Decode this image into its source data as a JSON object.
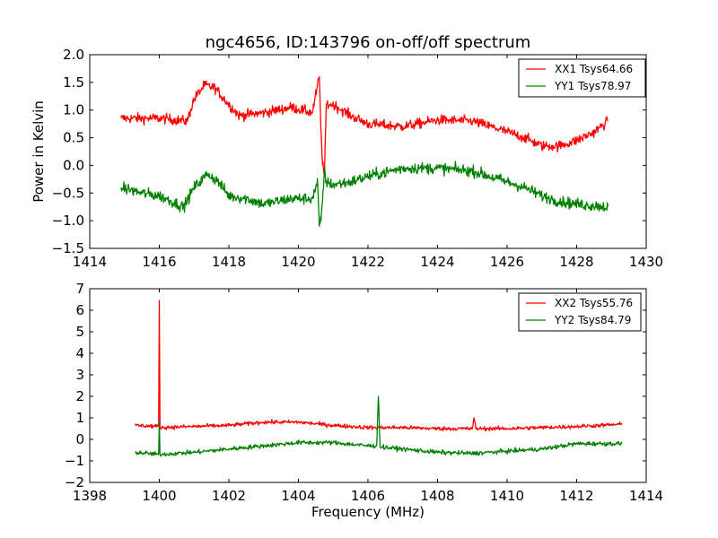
{
  "chart_data": [
    {
      "type": "line",
      "title": "ngc4656, ID:143796 on-off/off spectrum",
      "xlabel": "",
      "ylabel": "Power in Kelvin",
      "xlim": [
        1414,
        1430
      ],
      "ylim": [
        -1.5,
        2.0
      ],
      "xticks": [
        "1414",
        "1416",
        "1418",
        "1420",
        "1422",
        "1424",
        "1426",
        "1428",
        "1430"
      ],
      "yticks": [
        "−1.5",
        "−1.0",
        "−0.5",
        "0.0",
        "0.5",
        "1.0",
        "1.5",
        "2.0"
      ],
      "xtick_values": [
        1414,
        1416,
        1418,
        1420,
        1422,
        1424,
        1426,
        1428,
        1430
      ],
      "ytick_values": [
        -1.5,
        -1.0,
        -0.5,
        0.0,
        0.5,
        1.0,
        1.5,
        2.0
      ],
      "legend_position": "top-right",
      "grid": false,
      "series": [
        {
          "name": "XX1 Tsys64.66",
          "color": "#ff0000",
          "noise": 0.09,
          "x": [
            1414.9,
            1416.0,
            1416.8,
            1417.0,
            1417.3,
            1417.6,
            1418.0,
            1418.3,
            1419.0,
            1419.8,
            1420.4,
            1420.6,
            1420.65,
            1420.7,
            1420.75,
            1420.8,
            1421.0,
            1421.5,
            1422.0,
            1423.0,
            1424.0,
            1425.0,
            1425.8,
            1426.5,
            1427.0,
            1427.5,
            1428.0,
            1428.5,
            1428.9
          ],
          "y": [
            0.85,
            0.85,
            0.8,
            1.2,
            1.45,
            1.4,
            1.1,
            0.9,
            0.95,
            1.05,
            0.95,
            1.6,
            0.6,
            0.0,
            -0.2,
            1.1,
            1.1,
            0.9,
            0.75,
            0.7,
            0.82,
            0.8,
            0.65,
            0.5,
            0.35,
            0.35,
            0.45,
            0.6,
            0.8
          ]
        },
        {
          "name": "YY1 Tsys78.97",
          "color": "#008000",
          "noise": 0.1,
          "x": [
            1414.9,
            1415.5,
            1416.0,
            1416.7,
            1417.0,
            1417.4,
            1417.7,
            1418.0,
            1418.5,
            1419.0,
            1419.8,
            1420.4,
            1420.55,
            1420.6,
            1420.65,
            1420.75,
            1420.8,
            1421.0,
            1421.5,
            1422.0,
            1423.0,
            1424.0,
            1425.0,
            1426.0,
            1426.5,
            1427.0,
            1427.5,
            1428.0,
            1428.9
          ],
          "y": [
            -0.4,
            -0.5,
            -0.55,
            -0.75,
            -0.4,
            -0.15,
            -0.3,
            -0.55,
            -0.6,
            -0.7,
            -0.6,
            -0.6,
            -0.3,
            -1.1,
            -1.0,
            -0.1,
            -0.3,
            -0.35,
            -0.3,
            -0.2,
            -0.05,
            -0.05,
            -0.1,
            -0.3,
            -0.4,
            -0.55,
            -0.65,
            -0.7,
            -0.75
          ]
        }
      ]
    },
    {
      "type": "line",
      "title": "",
      "xlabel": "Frequency (MHz)",
      "ylabel": "",
      "xlim": [
        1398,
        1414
      ],
      "ylim": [
        -2,
        7
      ],
      "xticks": [
        "1398",
        "1400",
        "1402",
        "1404",
        "1406",
        "1408",
        "1410",
        "1412",
        "1414"
      ],
      "yticks": [
        "−2",
        "−1",
        "0",
        "1",
        "2",
        "3",
        "4",
        "5",
        "6",
        "7"
      ],
      "xtick_values": [
        1398,
        1400,
        1402,
        1404,
        1406,
        1408,
        1410,
        1412,
        1414
      ],
      "ytick_values": [
        -2,
        -1,
        0,
        1,
        2,
        3,
        4,
        5,
        6,
        7
      ],
      "legend_position": "top-right",
      "grid": false,
      "series": [
        {
          "name": "XX2 Tsys55.76",
          "color": "#ff0000",
          "noise": 0.09,
          "x": [
            1399.3,
            1399.98,
            1400.0,
            1400.02,
            1401.0,
            1402.0,
            1403.0,
            1404.0,
            1405.0,
            1406.0,
            1407.0,
            1408.0,
            1409.0,
            1409.05,
            1409.1,
            1410.0,
            1411.0,
            1412.0,
            1413.3
          ],
          "y": [
            0.65,
            0.6,
            6.45,
            0.55,
            0.6,
            0.65,
            0.8,
            0.8,
            0.65,
            0.55,
            0.55,
            0.5,
            0.5,
            1.0,
            0.5,
            0.5,
            0.55,
            0.6,
            0.7
          ],
          "spikes": [
            {
              "x": 1400.0,
              "y": 6.45
            },
            {
              "x": 1409.05,
              "y": 1.0
            }
          ]
        },
        {
          "name": "YY2 Tsys84.79",
          "color": "#008000",
          "noise": 0.1,
          "x": [
            1399.3,
            1399.98,
            1400.0,
            1400.02,
            1401.0,
            1402.0,
            1403.0,
            1404.0,
            1405.0,
            1406.0,
            1406.25,
            1406.3,
            1406.35,
            1407.0,
            1408.0,
            1409.0,
            1410.0,
            1411.0,
            1412.0,
            1413.3
          ],
          "y": [
            -0.6,
            -0.7,
            0.8,
            -0.7,
            -0.6,
            -0.45,
            -0.3,
            -0.15,
            -0.15,
            -0.3,
            -0.3,
            2.0,
            -0.35,
            -0.45,
            -0.6,
            -0.65,
            -0.55,
            -0.45,
            -0.2,
            -0.2
          ],
          "spikes": [
            {
              "x": 1406.3,
              "y": 2.0
            }
          ]
        }
      ]
    }
  ]
}
